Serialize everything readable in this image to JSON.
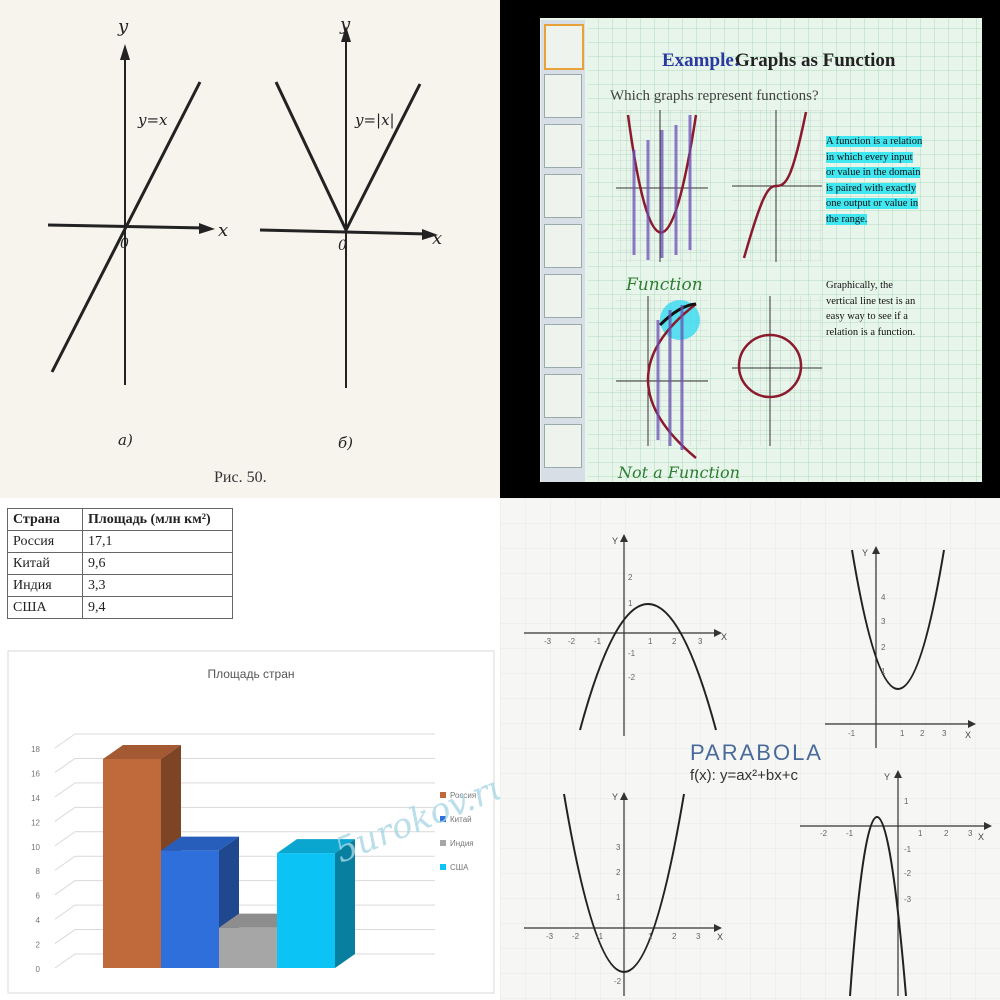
{
  "panel_abs": {
    "left": {
      "y_label": "y",
      "x_label": "x",
      "origin": "0",
      "eq": "y=x",
      "sub": "а)"
    },
    "right": {
      "y_label": "y",
      "x_label": "x",
      "origin": "0",
      "eq": "y=|x|",
      "sub": "б)"
    },
    "caption": "Рис. 50."
  },
  "panel_functions": {
    "title_prefix": "Example:",
    "title_main": "Graphs as Function",
    "question": "Which graphs represent functions?",
    "definition": [
      "A function is a relation",
      "in which every input",
      "or value in the domain",
      "is paired with exactly",
      "one output or value in",
      "the range."
    ],
    "vertical_test": [
      "Graphically, the",
      "vertical line test is an",
      "easy way to see if a",
      "relation is a function."
    ],
    "label_function": "Function",
    "label_not_function": "Not a Function",
    "accent_color": "#2e7d32"
  },
  "table": {
    "headers": [
      "Страна",
      "Площадь (млн км²)"
    ],
    "rows": [
      [
        "Россия",
        "17,1"
      ],
      [
        "Китай",
        "9,6"
      ],
      [
        "Индия",
        "3,3"
      ],
      [
        "США",
        "9,4"
      ]
    ]
  },
  "chart_data": {
    "type": "bar",
    "title": "Площадь стран",
    "categories": [
      "Россия",
      "Китай",
      "Индия",
      "США"
    ],
    "values": [
      17.1,
      9.6,
      3.3,
      9.4
    ],
    "colors": [
      "#c0693a",
      "#2f6fdc",
      "#a6a6a6",
      "#0cc3f5"
    ],
    "ylim": [
      0,
      18
    ],
    "y_ticks": [
      0,
      2,
      4,
      6,
      8,
      10,
      12,
      14,
      16,
      18
    ],
    "legend_position": "right",
    "grid": true
  },
  "panel_parabola": {
    "title": "PARABOLA",
    "formula": "f(x): y=ax²+bx+c",
    "axis_x": "X",
    "axis_y": "Y"
  },
  "watermark": "5urokov.ru"
}
